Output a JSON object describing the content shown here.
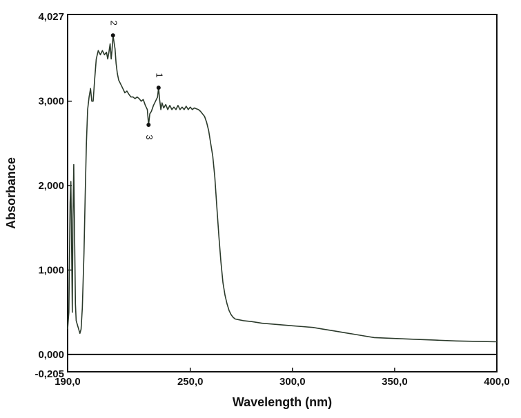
{
  "chart_data": {
    "type": "line",
    "title": "",
    "xlabel": "Wavelength (nm)",
    "ylabel": "Absorbance",
    "xlim": [
      190,
      400
    ],
    "ylim": [
      -0.205,
      4.027
    ],
    "x_ticks": [
      {
        "value": 190,
        "label": "190,0"
      },
      {
        "value": 250,
        "label": "250,0"
      },
      {
        "value": 300,
        "label": "300,0"
      },
      {
        "value": 350,
        "label": "350,0"
      },
      {
        "value": 400,
        "label": "400,0"
      }
    ],
    "y_ticks": [
      {
        "value": 4.027,
        "label": "4,027"
      },
      {
        "value": 3.0,
        "label": "3,000"
      },
      {
        "value": 2.0,
        "label": "2,000"
      },
      {
        "value": 1.0,
        "label": "1,000"
      },
      {
        "value": 0.0,
        "label": "0,000"
      },
      {
        "value": -0.205,
        "label": "-0,205"
      }
    ],
    "grid": false,
    "baseline": 0.0,
    "line_color": "#2b3a2b",
    "series": [
      {
        "values": [
          [
            190.0,
            0.3
          ],
          [
            190.6,
            0.5
          ],
          [
            191.2,
            1.8
          ],
          [
            191.6,
            2.05
          ],
          [
            192.0,
            1.2
          ],
          [
            192.3,
            0.5
          ],
          [
            192.6,
            1.6
          ],
          [
            193.0,
            2.25
          ],
          [
            193.4,
            1.4
          ],
          [
            193.8,
            0.6
          ],
          [
            194.2,
            0.4
          ],
          [
            194.8,
            0.35
          ],
          [
            195.4,
            0.3
          ],
          [
            196.0,
            0.25
          ],
          [
            196.6,
            0.3
          ],
          [
            197.2,
            0.55
          ],
          [
            198.0,
            1.2
          ],
          [
            198.6,
            1.9
          ],
          [
            199.2,
            2.5
          ],
          [
            199.8,
            2.9
          ],
          [
            200.5,
            3.05
          ],
          [
            201.2,
            3.15
          ],
          [
            201.8,
            3.0
          ],
          [
            202.5,
            3.0
          ],
          [
            203.2,
            3.25
          ],
          [
            204.0,
            3.5
          ],
          [
            205.0,
            3.6
          ],
          [
            206.0,
            3.55
          ],
          [
            207.0,
            3.6
          ],
          [
            208.0,
            3.55
          ],
          [
            209.0,
            3.58
          ],
          [
            209.6,
            3.5
          ],
          [
            210.2,
            3.58
          ],
          [
            210.8,
            3.68
          ],
          [
            211.3,
            3.5
          ],
          [
            211.7,
            3.6
          ],
          [
            212.2,
            3.78
          ],
          [
            212.7,
            3.7
          ],
          [
            213.2,
            3.62
          ],
          [
            213.7,
            3.45
          ],
          [
            214.3,
            3.33
          ],
          [
            215.0,
            3.25
          ],
          [
            216.0,
            3.2
          ],
          [
            217.0,
            3.15
          ],
          [
            218.0,
            3.1
          ],
          [
            219.0,
            3.12
          ],
          [
            220.0,
            3.08
          ],
          [
            221.0,
            3.05
          ],
          [
            222.0,
            3.05
          ],
          [
            223.0,
            3.03
          ],
          [
            224.0,
            3.05
          ],
          [
            225.0,
            3.03
          ],
          [
            226.0,
            3.0
          ],
          [
            227.0,
            3.02
          ],
          [
            228.0,
            2.95
          ],
          [
            229.0,
            2.9
          ],
          [
            229.6,
            2.72
          ],
          [
            230.2,
            2.85
          ],
          [
            231.0,
            2.88
          ],
          [
            232.0,
            2.95
          ],
          [
            233.0,
            3.0
          ],
          [
            234.0,
            3.05
          ],
          [
            234.5,
            3.16
          ],
          [
            235.0,
            3.02
          ],
          [
            235.6,
            2.9
          ],
          [
            236.2,
            2.98
          ],
          [
            237.0,
            2.92
          ],
          [
            238.0,
            2.96
          ],
          [
            239.0,
            2.9
          ],
          [
            240.0,
            2.95
          ],
          [
            241.0,
            2.9
          ],
          [
            242.0,
            2.93
          ],
          [
            243.0,
            2.9
          ],
          [
            244.0,
            2.95
          ],
          [
            245.0,
            2.9
          ],
          [
            246.0,
            2.93
          ],
          [
            247.0,
            2.9
          ],
          [
            248.0,
            2.94
          ],
          [
            249.0,
            2.9
          ],
          [
            250.0,
            2.93
          ],
          [
            251.0,
            2.9
          ],
          [
            252.0,
            2.92
          ],
          [
            253.0,
            2.91
          ],
          [
            254.0,
            2.9
          ],
          [
            255.0,
            2.88
          ],
          [
            256.0,
            2.85
          ],
          [
            257.0,
            2.82
          ],
          [
            258.0,
            2.75
          ],
          [
            259.0,
            2.65
          ],
          [
            260.0,
            2.5
          ],
          [
            261.0,
            2.35
          ],
          [
            262.0,
            2.1
          ],
          [
            263.0,
            1.75
          ],
          [
            264.0,
            1.4
          ],
          [
            265.0,
            1.1
          ],
          [
            266.0,
            0.85
          ],
          [
            267.0,
            0.7
          ],
          [
            268.0,
            0.6
          ],
          [
            269.0,
            0.52
          ],
          [
            270.0,
            0.47
          ],
          [
            271.0,
            0.44
          ],
          [
            272.0,
            0.42
          ],
          [
            274.0,
            0.41
          ],
          [
            276.0,
            0.4
          ],
          [
            280.0,
            0.39
          ],
          [
            285.0,
            0.37
          ],
          [
            290.0,
            0.36
          ],
          [
            295.0,
            0.35
          ],
          [
            300.0,
            0.34
          ],
          [
            305.0,
            0.33
          ],
          [
            310.0,
            0.32
          ],
          [
            315.0,
            0.3
          ],
          [
            320.0,
            0.28
          ],
          [
            325.0,
            0.26
          ],
          [
            330.0,
            0.24
          ],
          [
            335.0,
            0.22
          ],
          [
            340.0,
            0.2
          ],
          [
            350.0,
            0.19
          ],
          [
            360.0,
            0.18
          ],
          [
            370.0,
            0.17
          ],
          [
            380.0,
            0.16
          ],
          [
            390.0,
            0.155
          ],
          [
            400.0,
            0.15
          ]
        ]
      }
    ],
    "annotations": [
      {
        "label": "2",
        "x": 212.2,
        "y": 3.78
      },
      {
        "label": "1",
        "x": 234.5,
        "y": 3.16
      },
      {
        "label": "3",
        "x": 229.6,
        "y": 2.72
      }
    ]
  }
}
